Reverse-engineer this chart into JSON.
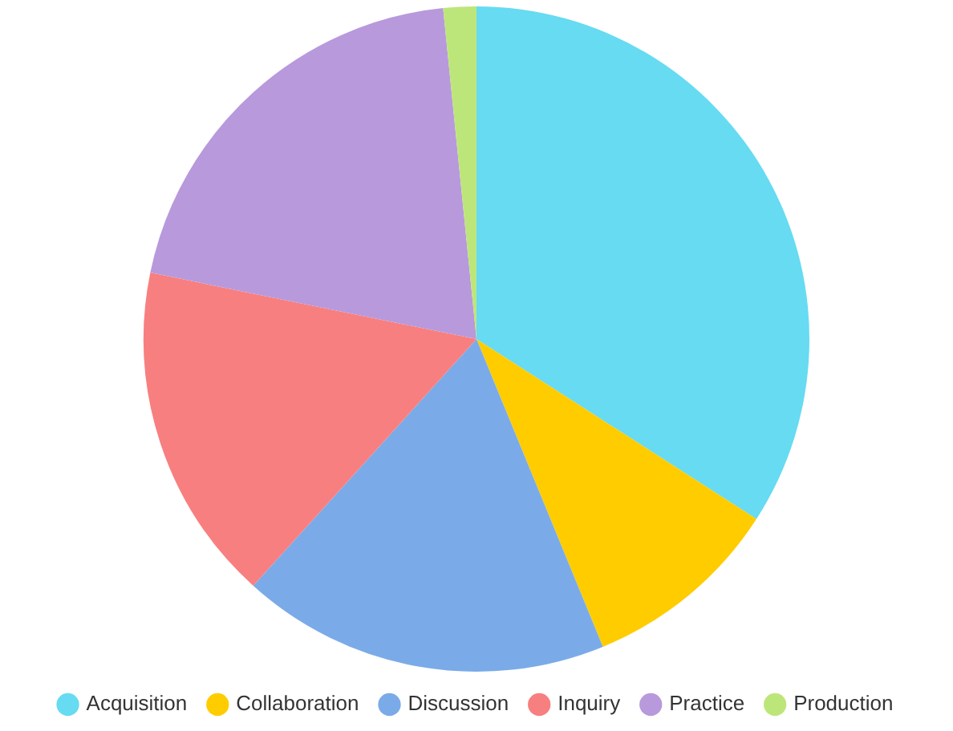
{
  "chart_data": {
    "type": "pie",
    "categories": [
      "Acquisition",
      "Collaboration",
      "Discussion",
      "Inquiry",
      "Practice",
      "Production"
    ],
    "values": [
      34.1,
      9.7,
      17.9,
      16.5,
      20.2,
      1.6
    ],
    "colors": [
      "#66dbf2",
      "#ffcc00",
      "#7aabe8",
      "#f87f7f",
      "#b899dc",
      "#bde67a"
    ],
    "legend": "bottom"
  }
}
